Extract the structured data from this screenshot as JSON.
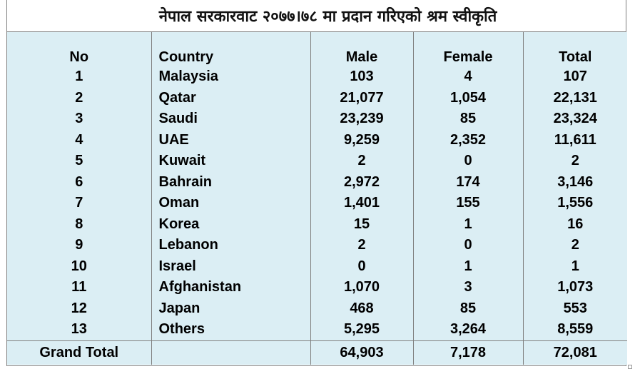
{
  "title": "नेपाल सरकारवाट २०७७।७८ मा प्रदान गरिएको श्रम स्वीकृति",
  "headers": {
    "no": "No",
    "country": "Country",
    "male": "Male",
    "female": "Female",
    "total": "Total"
  },
  "rows": [
    {
      "no": "1",
      "country": "Malaysia",
      "male": "103",
      "female": "4",
      "total": "107"
    },
    {
      "no": "2",
      "country": "Qatar",
      "male": "21,077",
      "female": "1,054",
      "total": "22,131"
    },
    {
      "no": "3",
      "country": "Saudi",
      "male": "23,239",
      "female": "85",
      "total": "23,324"
    },
    {
      "no": "4",
      "country": "UAE",
      "male": "9,259",
      "female": "2,352",
      "total": "11,611"
    },
    {
      "no": "5",
      "country": "Kuwait",
      "male": "2",
      "female": "0",
      "total": "2"
    },
    {
      "no": "6",
      "country": "Bahrain",
      "male": "2,972",
      "female": "174",
      "total": "3,146"
    },
    {
      "no": "7",
      "country": "Oman",
      "male": "1,401",
      "female": "155",
      "total": "1,556"
    },
    {
      "no": "8",
      "country": "Korea",
      "male": "15",
      "female": "1",
      "total": "16"
    },
    {
      "no": "9",
      "country": "Lebanon",
      "male": "2",
      "female": "0",
      "total": "2"
    },
    {
      "no": "10",
      "country": "Israel",
      "male": "0",
      "female": "1",
      "total": "1"
    },
    {
      "no": "11",
      "country": "Afghanistan",
      "male": "1,070",
      "female": "3",
      "total": "1,073"
    },
    {
      "no": "12",
      "country": "Japan",
      "male": "468",
      "female": "85",
      "total": "553"
    },
    {
      "no": "13",
      "country": "Others",
      "male": "5,295",
      "female": "3,264",
      "total": "8,559"
    }
  ],
  "grand_total": {
    "label": "Grand Total",
    "male": "64,903",
    "female": "7,178",
    "total": "72,081"
  },
  "colors": {
    "cell_fill": "#dbeef4",
    "border": "#7f7f7f"
  }
}
